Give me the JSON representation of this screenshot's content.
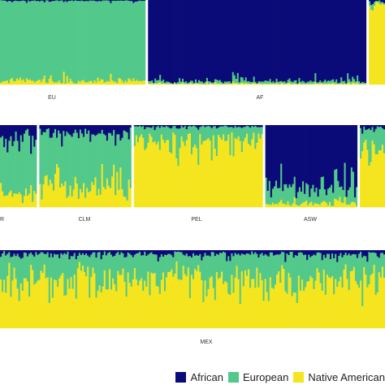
{
  "colors": {
    "African": "#0a0a78",
    "European": "#52c98a",
    "Native American": "#f5e51f",
    "separator": "#ffffff",
    "background": "#ffffff"
  },
  "chart_data": {
    "type": "stacked-bar (ADMIXTURE ancestry proportions)",
    "components": [
      "African",
      "European",
      "Native American"
    ],
    "y_range": [
      0,
      1
    ],
    "panels": [
      {
        "populations": [
          {
            "name": "EU",
            "n": 90,
            "mean": {
              "African": 0.01,
              "European": 0.95,
              "Native American": 0.04
            }
          },
          {
            "name": "AF",
            "n": 135,
            "mean": {
              "African": 0.96,
              "European": 0.03,
              "Native American": 0.01
            }
          },
          {
            "name": "",
            "n": 10,
            "mean": {
              "African": 0.02,
              "European": 0.03,
              "Native American": 0.95
            }
          }
        ]
      },
      {
        "populations": [
          {
            "name": "PUR",
            "label": "R",
            "n": 22,
            "mean": {
              "African": 0.17,
              "European": 0.68,
              "Native American": 0.15
            }
          },
          {
            "name": "CLM",
            "n": 55,
            "mean": {
              "African": 0.1,
              "European": 0.64,
              "Native American": 0.26
            }
          },
          {
            "name": "PEL",
            "n": 77,
            "mean": {
              "African": 0.02,
              "European": 0.18,
              "Native American": 0.8
            }
          },
          {
            "name": "ASW",
            "n": 55,
            "mean": {
              "African": 0.74,
              "European": 0.21,
              "Native American": 0.05
            }
          },
          {
            "name": "",
            "n": 15,
            "mean": {
              "African": 0.05,
              "European": 0.3,
              "Native American": 0.65
            }
          }
        ]
      },
      {
        "populations": [
          {
            "name": "MEX",
            "n": 230,
            "mean": {
              "African": 0.05,
              "European": 0.33,
              "Native American": 0.62
            }
          }
        ]
      }
    ]
  },
  "legend": {
    "items": [
      {
        "label": "African",
        "color": "#0a0a78"
      },
      {
        "label": "European",
        "color": "#52c98a"
      },
      {
        "label": "Native American",
        "color": "#f5e51f"
      }
    ]
  }
}
